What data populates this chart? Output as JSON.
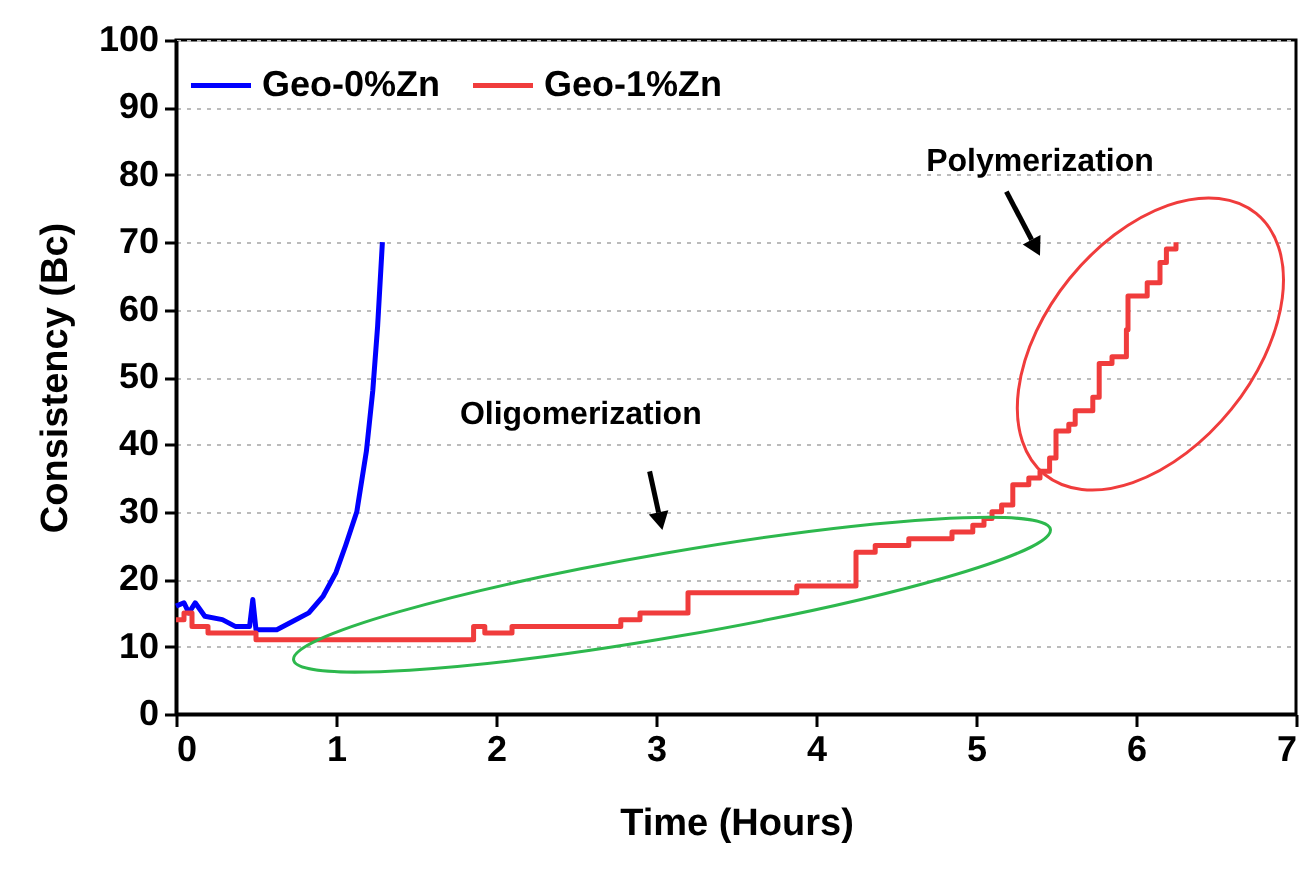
{
  "chart_data": {
    "type": "line",
    "xlabel": "Time (Hours)",
    "ylabel": "Consistency (Bc)",
    "xlim": [
      0,
      7
    ],
    "xticks": [
      0,
      1,
      2,
      3,
      4,
      5,
      6,
      7
    ],
    "ylim": [
      0,
      100
    ],
    "yticks": [
      0,
      10,
      20,
      30,
      40,
      50,
      60,
      70,
      80,
      90,
      100
    ],
    "grid": "y",
    "legend": "top left",
    "annotations": [
      "Oligomerization",
      "Polymerization"
    ],
    "series": [
      {
        "name": "Geo-0%Zn",
        "color": "#0000ff",
        "x": [
          0,
          0.05,
          0.08,
          0.12,
          0.18,
          0.29,
          0.37,
          0.46,
          0.48,
          0.5,
          0.63,
          0.71,
          0.83,
          0.92,
          1.0,
          1.06,
          1.13,
          1.19,
          1.23,
          1.26,
          1.29
        ],
        "values": [
          16,
          16.5,
          15,
          16.5,
          14.5,
          14,
          13,
          13,
          17,
          12.5,
          12.5,
          13.5,
          15,
          17.5,
          21,
          25,
          30,
          39,
          48,
          57.5,
          70
        ]
      },
      {
        "name": "Geo-1%Zn",
        "color": "#f03c3c",
        "type": "step",
        "x": [
          0,
          0.05,
          0.1,
          0.2,
          0.5,
          1.86,
          1.93,
          2.1,
          2.78,
          2.9,
          3.2,
          3.88,
          4.25,
          4.37,
          4.58,
          4.85,
          4.98,
          5.05,
          5.1,
          5.16,
          5.23,
          5.33,
          5.4,
          5.46,
          5.5,
          5.58,
          5.62,
          5.73,
          5.77,
          5.85,
          5.94,
          5.95,
          6.07,
          6.15,
          6.19,
          6.25
        ],
        "values": [
          14,
          15,
          13,
          12,
          11,
          13,
          12,
          13,
          14,
          15,
          18,
          19,
          24,
          25,
          26,
          27,
          28,
          29,
          30,
          31,
          34,
          35,
          36,
          38,
          42,
          43,
          45,
          47,
          52,
          53,
          57,
          62,
          64,
          67,
          69,
          70
        ]
      }
    ]
  }
}
